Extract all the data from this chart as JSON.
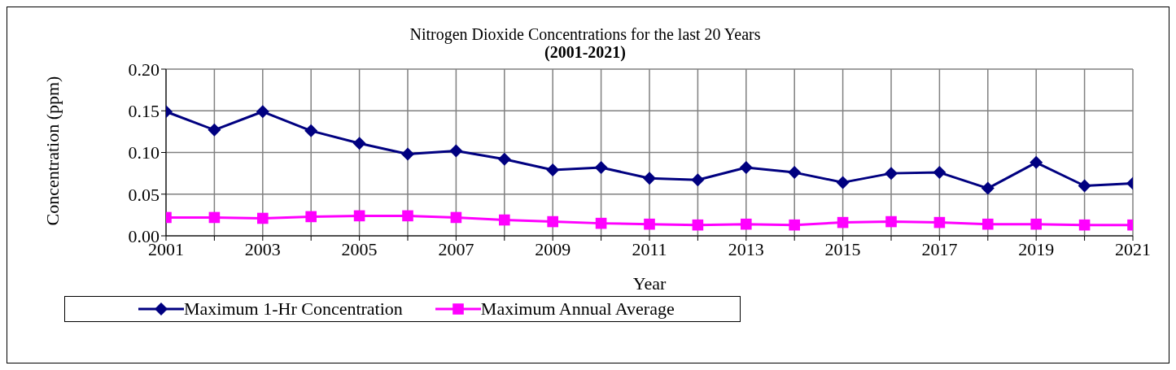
{
  "chart_data": {
    "type": "line",
    "title": "Nitrogen Dioxide Concentrations for the last 20 Years",
    "subtitle": "(2001-2021)",
    "xlabel": "Year",
    "ylabel": "Concentration (ppm)",
    "x": [
      2001,
      2002,
      2003,
      2004,
      2005,
      2006,
      2007,
      2008,
      2009,
      2010,
      2011,
      2012,
      2013,
      2014,
      2015,
      2016,
      2017,
      2018,
      2019,
      2020,
      2021
    ],
    "series": [
      {
        "name": "Maximum 1-Hr Concentration",
        "color": "#000080",
        "marker": "diamond",
        "values": [
          0.149,
          0.127,
          0.149,
          0.126,
          0.111,
          0.098,
          0.102,
          0.092,
          0.079,
          0.082,
          0.069,
          0.067,
          0.082,
          0.076,
          0.064,
          0.075,
          0.076,
          0.057,
          0.088,
          0.06,
          0.063
        ]
      },
      {
        "name": "Maximum Annual Average",
        "color": "#ff00ff",
        "marker": "square",
        "values": [
          0.022,
          0.022,
          0.021,
          0.023,
          0.024,
          0.024,
          0.022,
          0.019,
          0.017,
          0.015,
          0.014,
          0.013,
          0.014,
          0.013,
          0.016,
          0.017,
          0.016,
          0.014,
          0.014,
          0.013,
          0.013
        ]
      }
    ],
    "xlim": [
      2001,
      2021
    ],
    "xticks": [
      2001,
      {
        "value": 2002,
        "label": null
      },
      2003,
      {
        "value": 2004,
        "label": null
      },
      2005,
      {
        "value": 2006,
        "label": null
      },
      2007,
      {
        "value": 2008,
        "label": null
      },
      2009,
      {
        "value": 2010,
        "label": null
      },
      2011,
      {
        "value": 2012,
        "label": null
      },
      2013,
      {
        "value": 2014,
        "label": null
      },
      2015,
      {
        "value": 2016,
        "label": null
      },
      2017,
      {
        "value": 2018,
        "label": null
      },
      2019,
      {
        "value": 2020,
        "label": null
      },
      2021
    ],
    "ylim": [
      0,
      0.2
    ],
    "yticks": [
      {
        "value": 0,
        "label": "0.00"
      },
      {
        "value": 0.05,
        "label": "0.05"
      },
      {
        "value": 0.1,
        "label": "0.10"
      },
      {
        "value": 0.15,
        "label": "0.15"
      },
      {
        "value": 0.2,
        "label": "0.20"
      }
    ],
    "grid": true,
    "legend": "bottom",
    "line_style": "solid"
  }
}
